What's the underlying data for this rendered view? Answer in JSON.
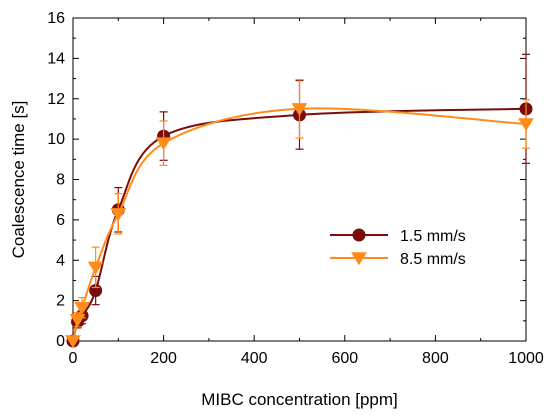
{
  "chart_data": {
    "type": "line",
    "title": "",
    "xlabel": "MIBC concentration [ppm]",
    "ylabel": "Coalescence time [s]",
    "xlim": [
      0,
      1000
    ],
    "ylim": [
      0,
      16
    ],
    "x_ticks": [
      0,
      200,
      400,
      600,
      800,
      1000
    ],
    "y_ticks": [
      0,
      2,
      4,
      6,
      8,
      10,
      12,
      14,
      16
    ],
    "grid": false,
    "legend_position": "center-right",
    "series": [
      {
        "name": "1.5 mm/s",
        "color": "#7a0c0c",
        "marker": "circle",
        "x": [
          0,
          10,
          20,
          50,
          100,
          200,
          500,
          1000
        ],
        "y": [
          0.0,
          0.95,
          1.25,
          2.5,
          6.5,
          10.15,
          11.2,
          11.5
        ],
        "err": [
          0.0,
          0.3,
          0.4,
          0.7,
          1.1,
          1.2,
          1.7,
          2.7
        ],
        "curve_y": [
          0.0,
          1.2,
          2.8,
          5.8,
          7.8,
          9.2,
          10.1,
          10.7,
          11.1,
          11.3
        ]
      },
      {
        "name": "8.5 mm/s",
        "color": "#ff8c1a",
        "marker": "triangle-down",
        "x": [
          0,
          10,
          20,
          50,
          100,
          200,
          500,
          1000
        ],
        "y": [
          0.0,
          1.05,
          1.65,
          3.65,
          6.3,
          9.8,
          11.5,
          10.75
        ],
        "err": [
          0.0,
          0.35,
          0.5,
          1.0,
          1.0,
          1.1,
          1.45,
          1.2
        ],
        "curve_y": [
          0.0,
          1.3,
          3.2,
          5.5,
          7.5,
          8.9,
          9.9,
          10.6,
          11.0,
          11.3
        ]
      }
    ]
  }
}
